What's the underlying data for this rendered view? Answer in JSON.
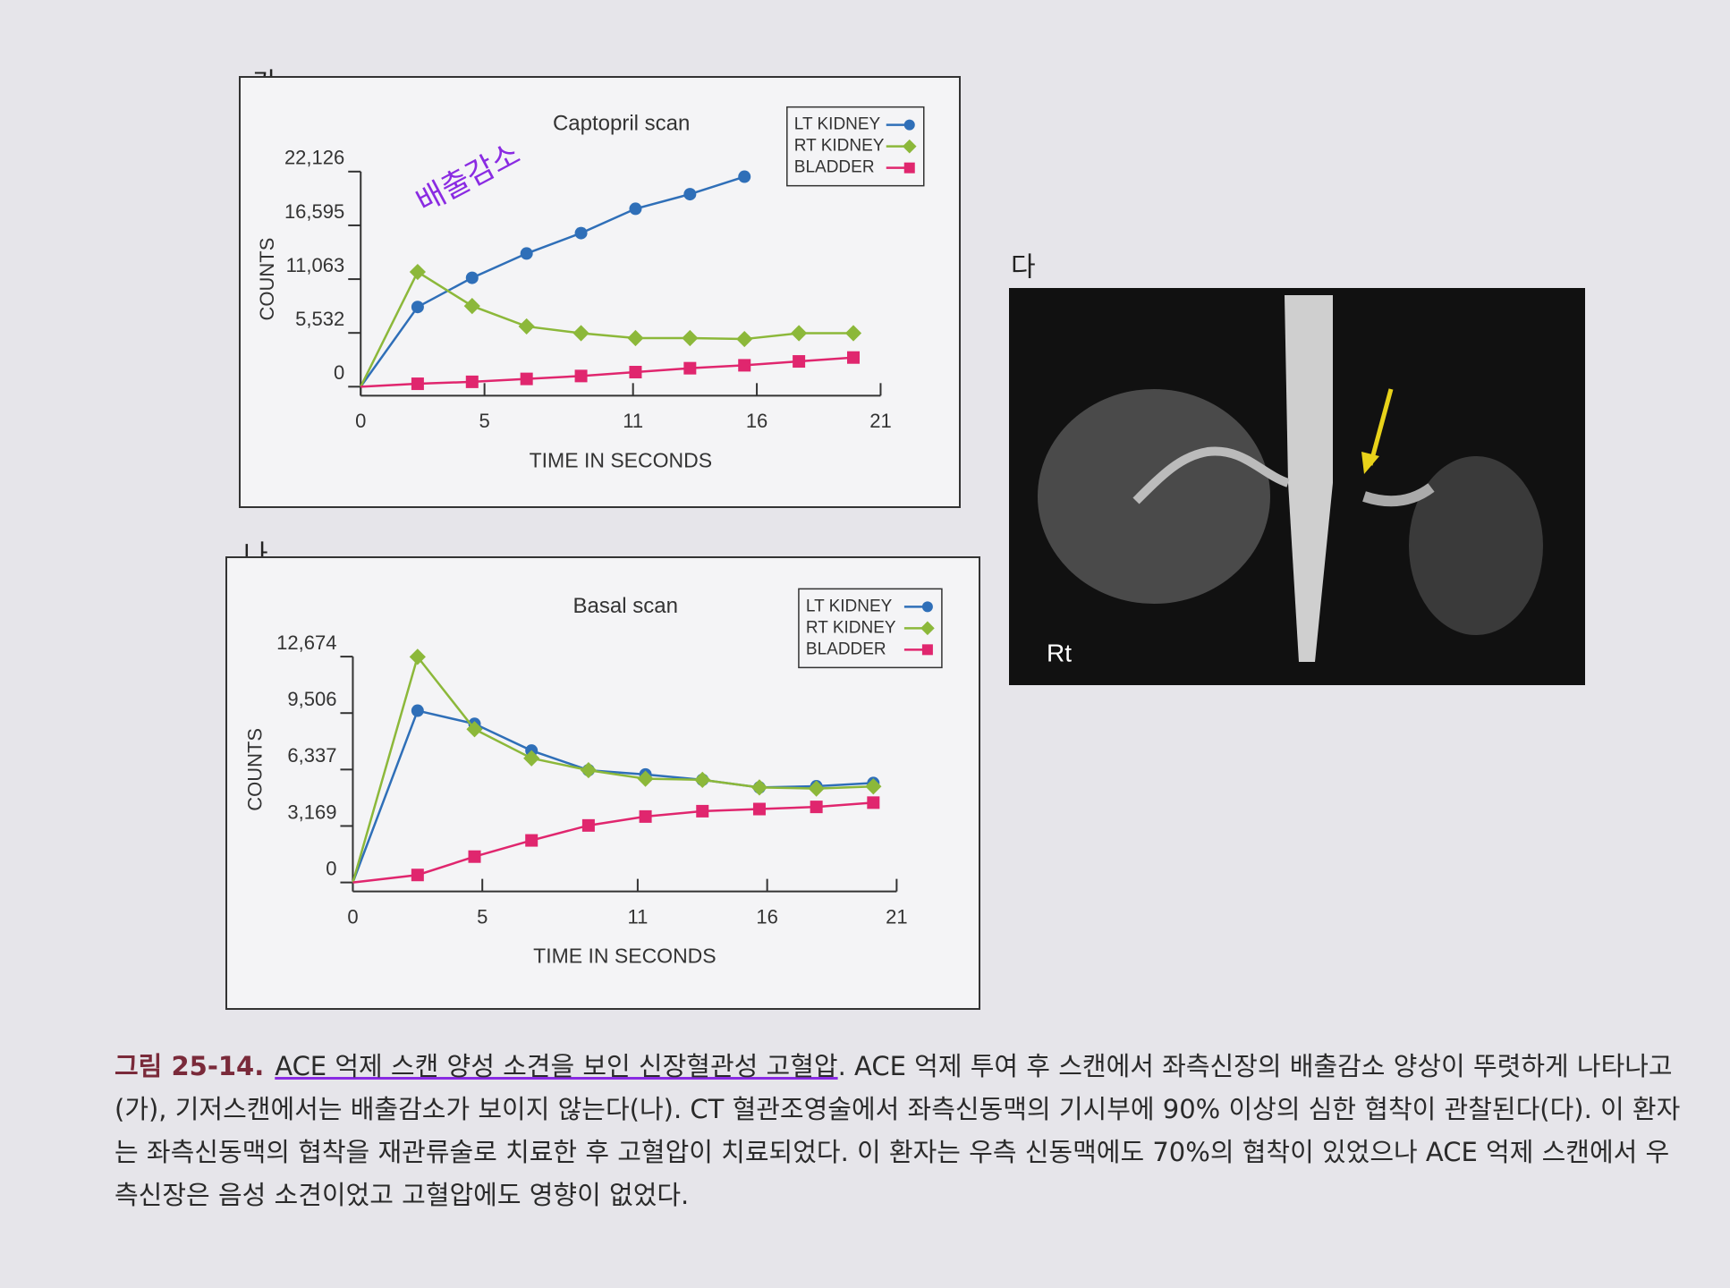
{
  "panel_labels": [
    "가",
    "나",
    "다"
  ],
  "chart_data": [
    {
      "type": "line",
      "title": "Captopril scan",
      "annotation": "배출감소",
      "x_label": "TIME IN SECONDS",
      "y_label": "COUNTS",
      "x": [
        0,
        2.3,
        4.5,
        6.7,
        8.9,
        11.1,
        13.3,
        15.5,
        17.7,
        19.9
      ],
      "series": [
        {
          "name": "LT KIDNEY",
          "color": "#2f6fb8",
          "marker": "circle",
          "values": [
            0,
            8200,
            11200,
            13700,
            15800,
            18300,
            19800,
            21600,
            null,
            null
          ]
        },
        {
          "name": "RT KIDNEY",
          "color": "#8cb83a",
          "marker": "diamond",
          "values": [
            0,
            11800,
            8300,
            6200,
            5500,
            5000,
            5000,
            4900,
            5500,
            5500
          ]
        },
        {
          "name": "BLADDER",
          "color": "#e0266e",
          "marker": "square",
          "values": [
            0,
            300,
            500,
            800,
            1100,
            1500,
            1900,
            2200,
            2600,
            3000
          ]
        }
      ],
      "xlim": [
        0,
        21
      ],
      "xticks": [
        0,
        5,
        11,
        16,
        21
      ],
      "ylim": [
        0,
        22126
      ],
      "yticks": [
        0,
        {
          "value": 5532,
          "label": "5,532"
        },
        {
          "value": 11063,
          "label": "11,063"
        },
        {
          "value": 16595,
          "label": "16,595"
        },
        {
          "value": 22126,
          "label": "22,126"
        }
      ],
      "legend": "upper right"
    },
    {
      "type": "line",
      "title": "Basal scan",
      "x_label": "TIME IN SECONDS",
      "y_label": "COUNTS",
      "x": [
        0,
        2.5,
        4.7,
        6.9,
        9.1,
        11.3,
        13.5,
        15.7,
        17.9,
        20.1
      ],
      "series": [
        {
          "name": "LT KIDNEY",
          "color": "#2f6fb8",
          "marker": "circle",
          "values": [
            0,
            9640,
            8900,
            7400,
            6300,
            6060,
            5760,
            5330,
            5400,
            5580
          ]
        },
        {
          "name": "RT KIDNEY",
          "color": "#8cb83a",
          "marker": "diamond",
          "values": [
            0,
            12660,
            8600,
            6970,
            6300,
            5820,
            5760,
            5330,
            5270,
            5390
          ]
        },
        {
          "name": "BLADDER",
          "color": "#e0266e",
          "marker": "square",
          "values": [
            0,
            420,
            1450,
            2360,
            3200,
            3700,
            4000,
            4120,
            4240,
            4480
          ]
        }
      ],
      "xlim": [
        0,
        21
      ],
      "xticks": [
        0,
        5,
        11,
        16,
        21
      ],
      "ylim": [
        0,
        12674
      ],
      "yticks": [
        0,
        {
          "value": 3169,
          "label": "3,169"
        },
        {
          "value": 6337,
          "label": "6,337"
        },
        {
          "value": 9506,
          "label": "9,506"
        },
        {
          "value": 12674,
          "label": "12,674"
        }
      ],
      "legend": "upper right"
    }
  ],
  "image": {
    "label": "Rt"
  },
  "caption": {
    "label": "그림 25-14.",
    "title": "ACE 억제 스캔 양성 소견을 보인 신장혈관성 고혈압",
    "text": ". ACE 억제 투여 후 스캔에서 좌측신장의 배출감소 양상이 뚜렷하게 나타나고(가), 기저스캔에서는 배출감소가 보이지 않는다(나). CT 혈관조영술에서 좌측신동맥의 기시부에 90% 이상의 심한 협착이 관찰된다(다). 이 환자는 좌측신동맥의 협착을 재관류술로 치료한 후 고혈압이 치료되었다. 이 환자는 우측 신동맥에도 70%의 협착이 있었으나 ACE 억제 스캔에서 우측신장은 음성 소견이었고 고혈압에도 영향이 없었다."
  }
}
